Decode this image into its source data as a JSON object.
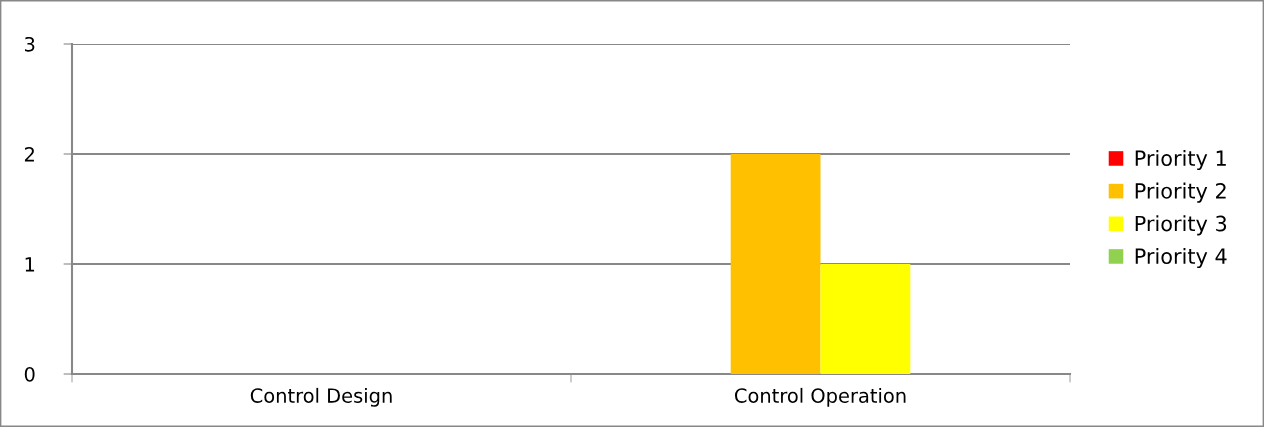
{
  "chart_data": {
    "type": "bar",
    "categories": [
      "Control Design",
      "Control Operation"
    ],
    "series": [
      {
        "name": "Priority 1",
        "color": "#ff0000",
        "values": [
          0,
          0
        ]
      },
      {
        "name": "Priority 2",
        "color": "#ffc000",
        "values": [
          0,
          2
        ]
      },
      {
        "name": "Priority 3",
        "color": "#ffff00",
        "values": [
          0,
          1
        ]
      },
      {
        "name": "Priority 4",
        "color": "#92d050",
        "values": [
          0,
          0
        ]
      }
    ],
    "ylim": [
      0,
      3
    ],
    "yticks": [
      0,
      1,
      2,
      3
    ],
    "grid": "y",
    "legend": "right"
  }
}
